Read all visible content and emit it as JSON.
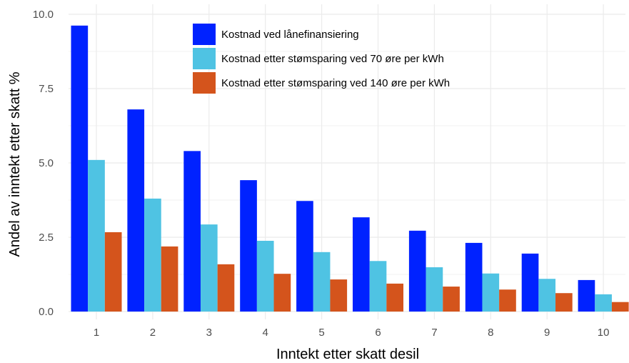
{
  "chart_data": {
    "type": "bar",
    "xlabel": "Inntekt etter skatt desil",
    "ylabel": "Andel av inntekt etter skatt %",
    "categories": [
      "1",
      "2",
      "3",
      "4",
      "5",
      "6",
      "7",
      "8",
      "9",
      "10"
    ],
    "ylim": [
      0,
      10.5
    ],
    "yticks": [
      0,
      2.5,
      5,
      7.5,
      10
    ],
    "ytick_labels": [
      "0.0",
      "2.5",
      "5.0",
      "7.5",
      "10.0"
    ],
    "grid": true,
    "legend_position": "top-center",
    "series": [
      {
        "name": "Kostnad ved lånefinansiering",
        "color": "#0022FF",
        "values": [
          9.62,
          6.8,
          5.4,
          4.42,
          3.72,
          3.17,
          2.72,
          2.31,
          1.95,
          1.06
        ]
      },
      {
        "name": "Kostnad etter stømsparing ved 70 øre per kWh",
        "color": "#4FC3E3",
        "values": [
          5.1,
          3.8,
          2.93,
          2.38,
          2.0,
          1.7,
          1.49,
          1.28,
          1.1,
          0.58
        ]
      },
      {
        "name": "Kostnad etter stømsparing ved 140 øre per kWh",
        "color": "#D4541C",
        "values": [
          2.67,
          2.19,
          1.59,
          1.27,
          1.08,
          0.94,
          0.84,
          0.74,
          0.62,
          0.32
        ]
      }
    ]
  }
}
